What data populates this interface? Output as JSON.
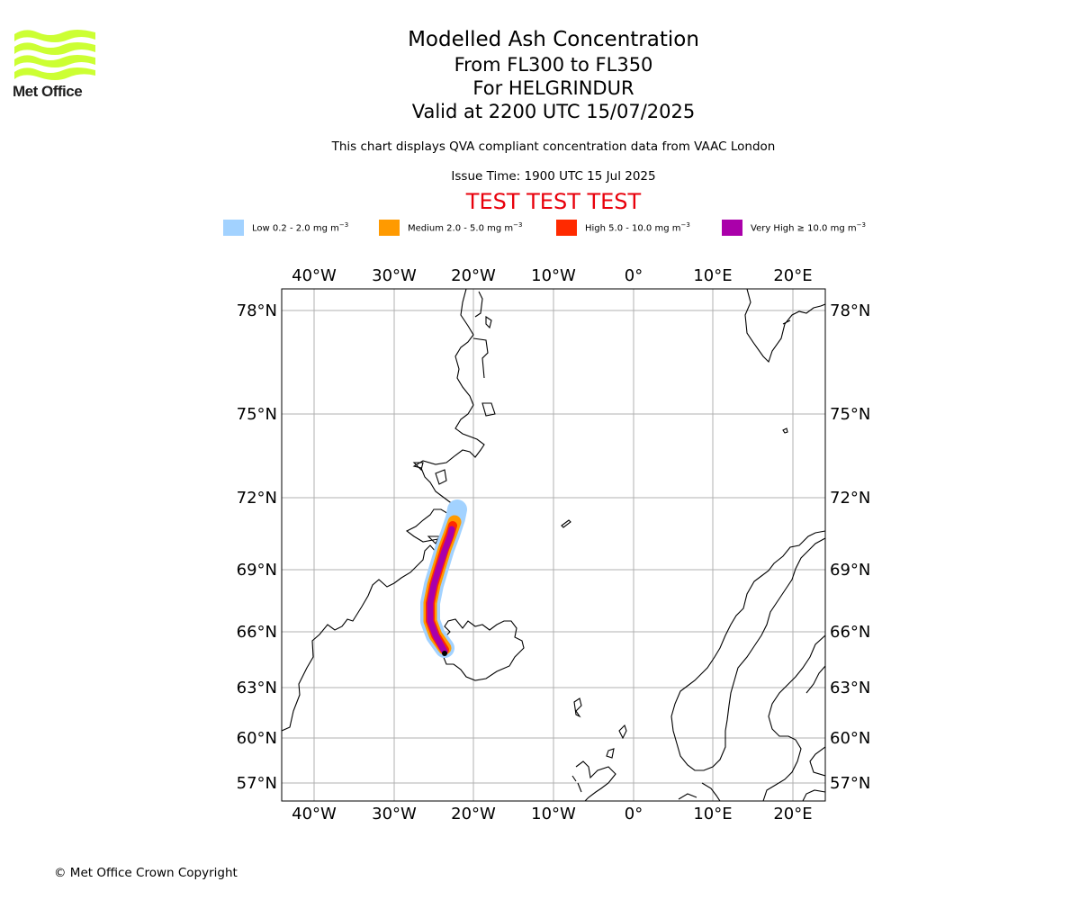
{
  "logo": {
    "text": "Met Office",
    "color": "#ccff33"
  },
  "header": {
    "title": "Modelled Ash Concentration",
    "levels": "From FL300 to FL350",
    "volcano": "For HELGRINDUR",
    "valid": "Valid at 2200 UTC 15/07/2025",
    "note": "This chart displays QVA compliant concentration data from VAAC London",
    "issue_time": "Issue Time: 1900 UTC 15 Jul 2025",
    "test_banner": "TEST TEST TEST"
  },
  "legend": [
    {
      "label": "Low 0.2 - 2.0 mg m",
      "unit_exp": "−3",
      "color": "#a2d2ff"
    },
    {
      "label": "Medium 2.0 - 5.0 mg m",
      "unit_exp": "−3",
      "color": "#ff9a00"
    },
    {
      "label": "High 5.0 - 10.0 mg m",
      "unit_exp": "−3",
      "color": "#ff2a00"
    },
    {
      "label": "Very High  ≥  10.0 mg m",
      "unit_exp": "−3",
      "color": "#aa00aa"
    }
  ],
  "map": {
    "lon_ticks": [
      "40°W",
      "30°W",
      "20°W",
      "10°W",
      "0°",
      "10°E",
      "20°E"
    ],
    "lat_ticks": [
      "78°N",
      "75°N",
      "72°N",
      "69°N",
      "66°N",
      "63°N",
      "60°N",
      "57°N"
    ],
    "grid": true
  },
  "footer": {
    "copyright": "© Met Office Crown Copyright"
  }
}
